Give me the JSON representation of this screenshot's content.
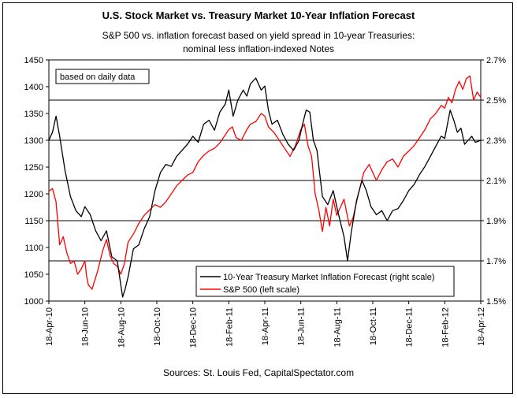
{
  "title": "U.S. Stock Market vs. Treasury Market 10-Year Inflation Forecast",
  "subtitle_line1": "S&P 500 vs. inflation forecast based on yield spread in 10-year Treasuries:",
  "subtitle_line2": "nominal less inflation-indexed Notes",
  "note": "based on daily data",
  "source": "Sources: St. Louis Fed, CapitalSpectator.com",
  "colors": {
    "sp500": "#ff0000",
    "inflation": "#000000",
    "grid": "#000000"
  },
  "chart_data": {
    "type": "line",
    "x_labels": [
      "18-Apr-10",
      "18-Jun-10",
      "18-Aug-10",
      "18-Oct-10",
      "18-Dec-10",
      "18-Feb-11",
      "18-Apr-11",
      "18-Jun-11",
      "18-Aug-11",
      "18-Oct-11",
      "18-Dec-11",
      "18-Feb-12",
      "18-Apr-12"
    ],
    "y_left": {
      "min": 1000,
      "max": 1450,
      "ticks": [
        1000,
        1050,
        1100,
        1150,
        1200,
        1250,
        1300,
        1350,
        1400,
        1450
      ]
    },
    "y_right": {
      "min": 1.5,
      "max": 2.7,
      "ticks": [
        "1.5%",
        "1.7%",
        "1.9%",
        "2.1%",
        "2.3%",
        "2.5%",
        "2.7%"
      ],
      "tick_values": [
        1.5,
        1.7,
        1.9,
        2.1,
        2.3,
        2.5,
        2.7
      ]
    },
    "grid": "horizontal at right-axis ticks",
    "legend_position": "bottom-right inside plot",
    "series": [
      {
        "name": "10-Year Treasury Market Inflation Forecast (right scale)",
        "axis": "right",
        "color": "#000000",
        "points": [
          [
            0,
            2.3
          ],
          [
            0.1,
            2.34
          ],
          [
            0.2,
            2.42
          ],
          [
            0.3,
            2.32
          ],
          [
            0.45,
            2.15
          ],
          [
            0.6,
            2.02
          ],
          [
            0.75,
            1.95
          ],
          [
            0.9,
            1.92
          ],
          [
            1.0,
            1.97
          ],
          [
            1.15,
            1.93
          ],
          [
            1.3,
            1.85
          ],
          [
            1.45,
            1.8
          ],
          [
            1.6,
            1.85
          ],
          [
            1.75,
            1.72
          ],
          [
            1.9,
            1.7
          ],
          [
            2.0,
            1.58
          ],
          [
            2.05,
            1.52
          ],
          [
            2.12,
            1.56
          ],
          [
            2.2,
            1.62
          ],
          [
            2.35,
            1.76
          ],
          [
            2.5,
            1.78
          ],
          [
            2.65,
            1.86
          ],
          [
            2.8,
            1.92
          ],
          [
            2.95,
            2.05
          ],
          [
            3.1,
            2.14
          ],
          [
            3.25,
            2.18
          ],
          [
            3.4,
            2.17
          ],
          [
            3.55,
            2.22
          ],
          [
            3.7,
            2.25
          ],
          [
            3.85,
            2.28
          ],
          [
            4.0,
            2.32
          ],
          [
            4.15,
            2.29
          ],
          [
            4.3,
            2.38
          ],
          [
            4.45,
            2.4
          ],
          [
            4.6,
            2.35
          ],
          [
            4.75,
            2.44
          ],
          [
            4.9,
            2.48
          ],
          [
            5.0,
            2.55
          ],
          [
            5.12,
            2.42
          ],
          [
            5.25,
            2.5
          ],
          [
            5.4,
            2.55
          ],
          [
            5.5,
            2.52
          ],
          [
            5.6,
            2.58
          ],
          [
            5.75,
            2.61
          ],
          [
            5.9,
            2.55
          ],
          [
            6.0,
            2.57
          ],
          [
            6.1,
            2.45
          ],
          [
            6.2,
            2.38
          ],
          [
            6.35,
            2.4
          ],
          [
            6.5,
            2.33
          ],
          [
            6.65,
            2.28
          ],
          [
            6.8,
            2.25
          ],
          [
            6.95,
            2.3
          ],
          [
            7.05,
            2.38
          ],
          [
            7.15,
            2.45
          ],
          [
            7.25,
            2.44
          ],
          [
            7.35,
            2.3
          ],
          [
            7.45,
            2.25
          ],
          [
            7.6,
            2.02
          ],
          [
            7.75,
            1.98
          ],
          [
            7.9,
            2.05
          ],
          [
            8.05,
            1.93
          ],
          [
            8.2,
            1.82
          ],
          [
            8.3,
            1.7
          ],
          [
            8.4,
            1.84
          ],
          [
            8.55,
            2.0
          ],
          [
            8.7,
            2.1
          ],
          [
            8.82,
            2.05
          ],
          [
            8.95,
            1.97
          ],
          [
            9.1,
            1.93
          ],
          [
            9.25,
            1.95
          ],
          [
            9.4,
            1.9
          ],
          [
            9.55,
            1.95
          ],
          [
            9.7,
            1.96
          ],
          [
            9.85,
            2.0
          ],
          [
            10.0,
            2.05
          ],
          [
            10.15,
            2.08
          ],
          [
            10.3,
            2.13
          ],
          [
            10.45,
            2.17
          ],
          [
            10.6,
            2.22
          ],
          [
            10.75,
            2.27
          ],
          [
            10.9,
            2.32
          ],
          [
            11.0,
            2.31
          ],
          [
            11.15,
            2.45
          ],
          [
            11.25,
            2.4
          ],
          [
            11.35,
            2.34
          ],
          [
            11.45,
            2.36
          ],
          [
            11.55,
            2.28
          ],
          [
            11.65,
            2.3
          ],
          [
            11.75,
            2.32
          ],
          [
            11.85,
            2.29
          ],
          [
            12.0,
            2.3
          ]
        ]
      },
      {
        "name": "S&P 500 (left scale)",
        "axis": "left",
        "color": "#ff0000",
        "points": [
          [
            0,
            1205
          ],
          [
            0.1,
            1210
          ],
          [
            0.2,
            1185
          ],
          [
            0.3,
            1105
          ],
          [
            0.4,
            1120
          ],
          [
            0.5,
            1090
          ],
          [
            0.6,
            1070
          ],
          [
            0.7,
            1075
          ],
          [
            0.8,
            1050
          ],
          [
            0.9,
            1060
          ],
          [
            1.0,
            1075
          ],
          [
            1.05,
            1045
          ],
          [
            1.1,
            1030
          ],
          [
            1.2,
            1022
          ],
          [
            1.35,
            1055
          ],
          [
            1.5,
            1095
          ],
          [
            1.6,
            1115
          ],
          [
            1.7,
            1085
          ],
          [
            1.8,
            1070
          ],
          [
            1.9,
            1065
          ],
          [
            2.0,
            1050
          ],
          [
            2.1,
            1070
          ],
          [
            2.2,
            1110
          ],
          [
            2.35,
            1125
          ],
          [
            2.5,
            1145
          ],
          [
            2.65,
            1160
          ],
          [
            2.8,
            1170
          ],
          [
            2.95,
            1180
          ],
          [
            3.1,
            1175
          ],
          [
            3.25,
            1185
          ],
          [
            3.4,
            1200
          ],
          [
            3.55,
            1215
          ],
          [
            3.7,
            1225
          ],
          [
            3.85,
            1235
          ],
          [
            4.0,
            1240
          ],
          [
            4.15,
            1260
          ],
          [
            4.3,
            1272
          ],
          [
            4.45,
            1280
          ],
          [
            4.6,
            1285
          ],
          [
            4.75,
            1295
          ],
          [
            4.9,
            1310
          ],
          [
            5.0,
            1320
          ],
          [
            5.1,
            1325
          ],
          [
            5.2,
            1305
          ],
          [
            5.35,
            1300
          ],
          [
            5.5,
            1320
          ],
          [
            5.6,
            1330
          ],
          [
            5.75,
            1335
          ],
          [
            5.9,
            1350
          ],
          [
            6.0,
            1345
          ],
          [
            6.1,
            1325
          ],
          [
            6.25,
            1315
          ],
          [
            6.4,
            1300
          ],
          [
            6.55,
            1285
          ],
          [
            6.7,
            1270
          ],
          [
            6.85,
            1290
          ],
          [
            7.0,
            1320
          ],
          [
            7.1,
            1330
          ],
          [
            7.2,
            1290
          ],
          [
            7.3,
            1270
          ],
          [
            7.4,
            1200
          ],
          [
            7.5,
            1170
          ],
          [
            7.6,
            1130
          ],
          [
            7.7,
            1175
          ],
          [
            7.8,
            1140
          ],
          [
            7.9,
            1190
          ],
          [
            8.0,
            1160
          ],
          [
            8.1,
            1175
          ],
          [
            8.2,
            1190
          ],
          [
            8.35,
            1140
          ],
          [
            8.45,
            1155
          ],
          [
            8.6,
            1200
          ],
          [
            8.75,
            1240
          ],
          [
            8.9,
            1255
          ],
          [
            9.0,
            1240
          ],
          [
            9.1,
            1225
          ],
          [
            9.25,
            1245
          ],
          [
            9.4,
            1260
          ],
          [
            9.55,
            1265
          ],
          [
            9.7,
            1250
          ],
          [
            9.85,
            1270
          ],
          [
            10.0,
            1280
          ],
          [
            10.15,
            1290
          ],
          [
            10.3,
            1305
          ],
          [
            10.45,
            1320
          ],
          [
            10.6,
            1340
          ],
          [
            10.75,
            1350
          ],
          [
            10.9,
            1365
          ],
          [
            11.0,
            1360
          ],
          [
            11.1,
            1380
          ],
          [
            11.2,
            1370
          ],
          [
            11.3,
            1395
          ],
          [
            11.4,
            1410
          ],
          [
            11.5,
            1395
          ],
          [
            11.6,
            1415
          ],
          [
            11.7,
            1420
          ],
          [
            11.8,
            1375
          ],
          [
            11.9,
            1390
          ],
          [
            12.0,
            1380
          ]
        ]
      }
    ]
  }
}
